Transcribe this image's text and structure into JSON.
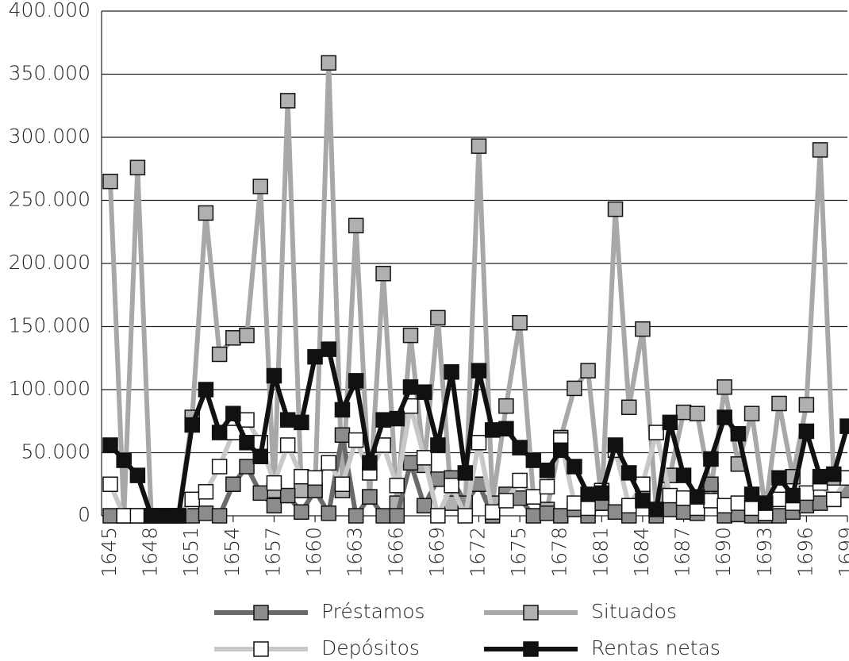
{
  "chart_data": {
    "type": "line",
    "x": [
      1645,
      1646,
      1647,
      1648,
      1649,
      1650,
      1651,
      1652,
      1653,
      1654,
      1655,
      1656,
      1657,
      1658,
      1659,
      1660,
      1661,
      1662,
      1663,
      1664,
      1665,
      1666,
      1667,
      1668,
      1669,
      1670,
      1671,
      1672,
      1673,
      1674,
      1675,
      1676,
      1677,
      1678,
      1679,
      1680,
      1681,
      1682,
      1683,
      1684,
      1685,
      1686,
      1687,
      1688,
      1689,
      1690,
      1691,
      1692,
      1693,
      1694,
      1695,
      1696,
      1697,
      1698,
      1699
    ],
    "xlim": [
      1645,
      1699
    ],
    "xticks": [
      1645,
      1648,
      1651,
      1654,
      1657,
      1660,
      1663,
      1666,
      1669,
      1672,
      1675,
      1678,
      1681,
      1684,
      1687,
      1690,
      1693,
      1696,
      1699
    ],
    "ylim": [
      0,
      400000
    ],
    "yticks": [
      0,
      {
        "value": 50000,
        "label": "50.000"
      },
      {
        "value": 100000,
        "label": "100.000"
      },
      {
        "value": 150000,
        "label": "150.000"
      },
      {
        "value": 200000,
        "label": "200.000"
      },
      {
        "value": 250000,
        "label": "250.000"
      },
      {
        "value": 300000,
        "label": "300.000"
      },
      {
        "value": 350000,
        "label": "350.000"
      },
      {
        "value": 400000,
        "label": "400.000"
      }
    ],
    "grid": true,
    "series": [
      {
        "name": "Préstamos",
        "color": "#6a6a6a",
        "marker_color": "#8c8c8c",
        "values": [
          0,
          0,
          0,
          0,
          0,
          0,
          0,
          2000,
          0,
          25000,
          39000,
          18000,
          8000,
          16000,
          3000,
          20000,
          2000,
          64000,
          0,
          15000,
          0,
          0,
          42000,
          8000,
          29000,
          30000,
          10000,
          25000,
          0,
          17000,
          14000,
          0,
          2000,
          0,
          5000,
          0,
          10000,
          3000,
          0,
          15000,
          0,
          5000,
          3000,
          2000,
          25000,
          0,
          1000,
          0,
          0,
          0,
          3000,
          8000,
          10000,
          13000,
          20000
        ]
      },
      {
        "name": "Situados",
        "color": "#a8a8a8",
        "marker_color": "#b0b0b0",
        "values": [
          265000,
          0,
          276000,
          0,
          0,
          0,
          78000,
          240000,
          128000,
          141000,
          143000,
          261000,
          20000,
          329000,
          20000,
          20000,
          359000,
          20000,
          230000,
          15000,
          192000,
          10000,
          143000,
          40000,
          157000,
          10000,
          5000,
          293000,
          10000,
          87000,
          153000,
          15000,
          5000,
          62000,
          101000,
          115000,
          10000,
          243000,
          86000,
          148000,
          5000,
          32000,
          82000,
          81000,
          20000,
          102000,
          41000,
          81000,
          5000,
          89000,
          31000,
          88000,
          290000,
          30000,
          30000
        ]
      },
      {
        "name": "Depósitos",
        "color": "#c8c8c8",
        "marker_color": "#ffffff",
        "values": [
          25000,
          0,
          0,
          0,
          0,
          0,
          13000,
          19000,
          39000,
          66000,
          76000,
          58000,
          26000,
          56000,
          31000,
          30000,
          42000,
          25000,
          60000,
          34000,
          56000,
          24000,
          87000,
          46000,
          0,
          24000,
          0,
          58000,
          3000,
          12000,
          28000,
          15000,
          23000,
          60000,
          10000,
          6000,
          20000,
          52000,
          8000,
          25000,
          66000,
          16000,
          14000,
          6000,
          12000,
          8000,
          10000,
          6000,
          2000,
          13000,
          10000,
          18000,
          26000,
          13000,
          30000
        ]
      },
      {
        "name": "Rentas netas",
        "color": "#111111",
        "marker_color": "#111111",
        "values": [
          56000,
          44000,
          32000,
          0,
          0,
          0,
          72000,
          100000,
          66000,
          81000,
          58000,
          47000,
          111000,
          76000,
          74000,
          126000,
          132000,
          84000,
          107000,
          42000,
          76000,
          77000,
          102000,
          98000,
          56000,
          114000,
          34000,
          115000,
          68000,
          69000,
          54000,
          44000,
          36000,
          52000,
          39000,
          17000,
          18000,
          56000,
          34000,
          12000,
          5000,
          74000,
          32000,
          15000,
          45000,
          78000,
          65000,
          17000,
          10000,
          30000,
          16000,
          67000,
          31000,
          33000,
          71000
        ]
      }
    ]
  }
}
